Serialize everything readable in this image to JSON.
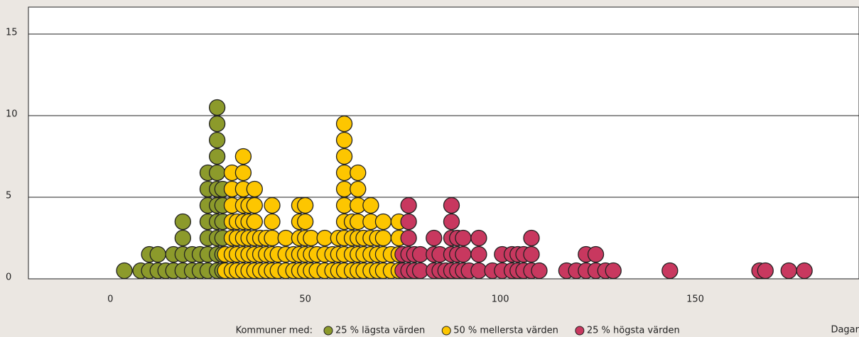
{
  "chart_data": {
    "type": "dotplot",
    "xlim": [
      -21,
      192
    ],
    "xticks": [
      0,
      50,
      100,
      150
    ],
    "ylim": [
      0,
      16.65
    ],
    "yticks": [
      0,
      5,
      10,
      15
    ],
    "grid": true,
    "x_label": "Dagar",
    "legend_title": "Kommuner med:",
    "series": [
      {
        "name": "25 % lägsta värden",
        "color": "#8c9a2b",
        "x": [
          3.6,
          7.8,
          10,
          12.2,
          14.2,
          16.2,
          18.6,
          21,
          23,
          25,
          27.4,
          28.8
        ],
        "counts": [
          1,
          1,
          2,
          2,
          1,
          2,
          4,
          2,
          2,
          7,
          11,
          6
        ]
      },
      {
        "name": "50 % mellersta värden",
        "color": "#fdc600",
        "x": [
          29.5,
          31.2,
          32.5,
          34.1,
          35.5,
          37,
          38.5,
          40,
          41.5,
          43,
          45,
          47,
          48.5,
          50,
          51.5,
          53,
          55,
          57,
          58.5,
          60,
          62,
          63.5,
          65,
          66.8,
          68.5,
          70,
          72,
          74
        ],
        "counts": [
          2,
          7,
          4,
          8,
          5,
          6,
          3,
          3,
          5,
          2,
          3,
          2,
          5,
          5,
          3,
          2,
          3,
          2,
          3,
          10,
          4,
          7,
          3,
          5,
          3,
          4,
          2,
          4
        ]
      },
      {
        "name": "25 % högsta värden",
        "color": "#c8385f",
        "x": [
          75,
          76.5,
          78,
          79.5,
          83,
          84.5,
          86,
          87.5,
          89,
          90.5,
          92,
          94.5,
          98,
          100.5,
          103,
          104.5,
          106,
          108,
          110,
          117,
          119.5,
          122,
          124.5,
          127,
          129,
          143.5,
          166.5,
          168,
          174,
          178
        ],
        "counts": [
          2,
          5,
          2,
          2,
          3,
          2,
          1,
          5,
          3,
          3,
          1,
          3,
          1,
          2,
          2,
          2,
          2,
          3,
          1,
          1,
          1,
          2,
          2,
          1,
          1,
          1,
          1,
          1,
          1,
          1
        ]
      }
    ]
  }
}
